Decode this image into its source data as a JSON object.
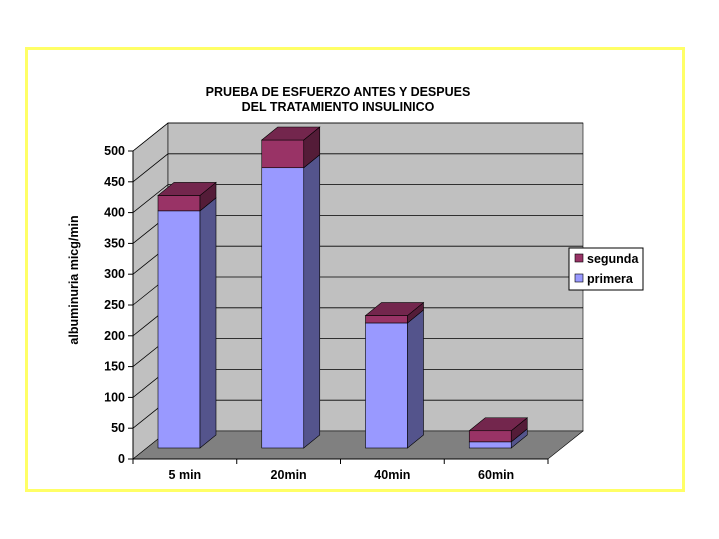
{
  "chart_data": {
    "type": "bar",
    "stacked": true,
    "three_d": true,
    "title_lines": [
      "PRUEBA DE ESFUERZO ANTES Y DESPUES",
      "DEL TRATAMIENTO INSULINICO"
    ],
    "ylabel": "albuminuria micg/min",
    "xlabel": "",
    "categories": [
      "5 min",
      "20min",
      "40min",
      "60min"
    ],
    "ylim": [
      0,
      500
    ],
    "yticks": [
      0,
      50,
      100,
      150,
      200,
      250,
      300,
      350,
      400,
      450,
      500
    ],
    "series": [
      {
        "name": "primera",
        "values": [
          385,
          455,
          203,
          10
        ],
        "color": "#9999ff"
      },
      {
        "name": "segunda",
        "values": [
          25,
          45,
          12,
          18
        ],
        "color": "#993366"
      }
    ],
    "legend_position": "right",
    "grid": true,
    "wall_color": "#c0c0c0",
    "floor_color": "#808080"
  }
}
